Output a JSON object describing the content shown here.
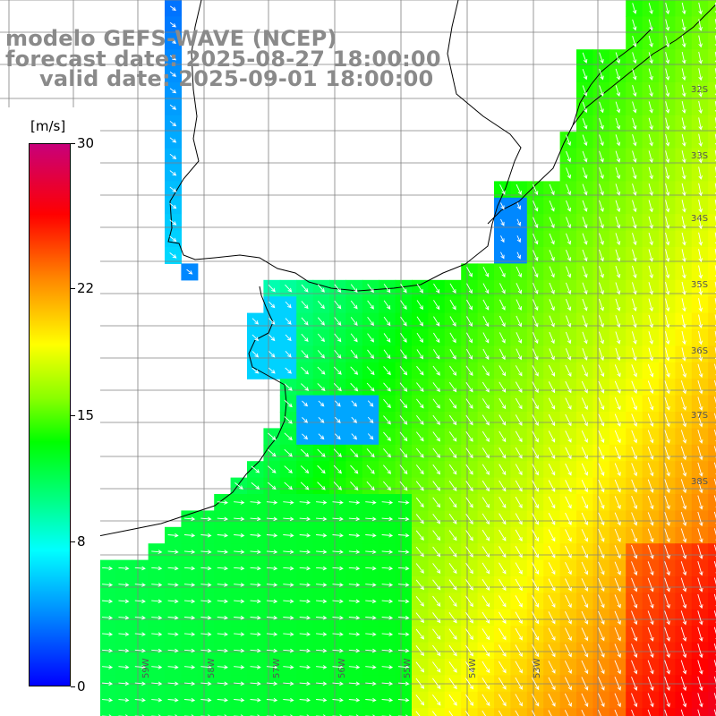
{
  "title": {
    "line1": "modelo GEFS-WAVE (NCEP)",
    "line2": "forecast date: 2025-08-27 18:00:00",
    "line3": "valid date: 2025-09-01 18:00:00"
  },
  "colorbar": {
    "unit": "[m/s]",
    "min": 0,
    "max": 30,
    "ticks": [
      {
        "value": 30,
        "label": "30"
      },
      {
        "value": 22,
        "label": "22"
      },
      {
        "value": 15,
        "label": "15"
      },
      {
        "value": 8,
        "label": "8"
      },
      {
        "value": 0,
        "label": "0"
      }
    ]
  },
  "latitude_labels": [
    "32S",
    "33S",
    "34S",
    "35S",
    "36S",
    "37S",
    "38S"
  ],
  "longitude_labels": [
    "61W",
    "60W",
    "59W",
    "58W",
    "57W",
    "56W",
    "55W",
    "54W",
    "53W"
  ],
  "colors": {
    "land": "#ffffff",
    "grid": "#808080",
    "coast": "#000000",
    "arrow": "#ffffff",
    "title": "#8a8a8a"
  }
}
